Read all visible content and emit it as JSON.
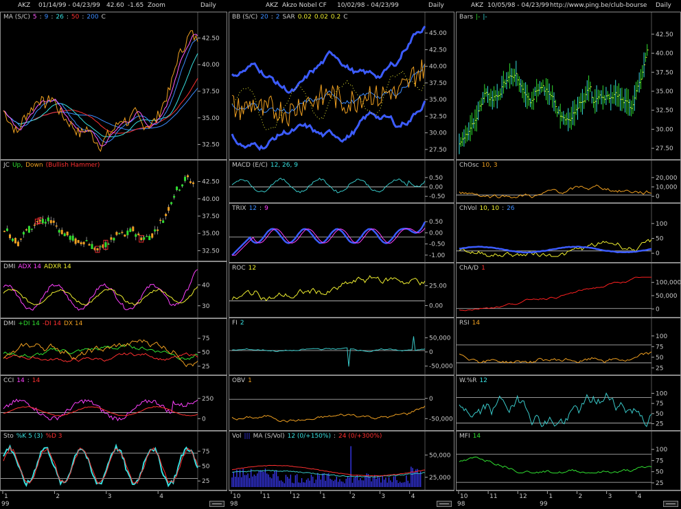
{
  "columns": [
    {
      "id": "c1",
      "header": {
        "ticker": "AKZ",
        "range": "01/14/99 - 04/23/99",
        "price": "42.60",
        "change": "-1.65",
        "mode": "Zoom",
        "period": "Daily"
      },
      "x_labels": [
        "1",
        "2",
        "3",
        "4"
      ],
      "year_label": "99",
      "panels": [
        {
          "id": "c1p1",
          "kind": "price-ma",
          "label": [
            [
              "MA (S/C)",
              "#c8c8c8"
            ],
            [
              "5",
              "#ff5cff"
            ],
            [
              ":",
              "#c8c8c8"
            ],
            [
              "9",
              "#3c8cff"
            ],
            [
              ":",
              "#c8c8c8"
            ],
            [
              "26",
              "#38e0e0"
            ],
            [
              ":",
              "#c8c8c8"
            ],
            [
              "50",
              "#ff3030"
            ],
            [
              ":",
              "#c8c8c8"
            ],
            [
              "200",
              "#3c8cff"
            ],
            [
              "C",
              "#c8c8c8"
            ]
          ],
          "ticks": [
            "42.50",
            "40.00",
            "37.50",
            "35.00",
            "32.50"
          ]
        },
        {
          "id": "c1p2",
          "kind": "candles",
          "label": [
            [
              "JC",
              "#c8c8c8"
            ],
            [
              "Up,",
              "#30e030"
            ],
            [
              "Down",
              "#f0a020"
            ],
            [
              "(Bullish Hammer)",
              "#ff3030"
            ]
          ],
          "ticks": [
            "42.50",
            "40.00",
            "37.50",
            "35.00",
            "32.50"
          ]
        },
        {
          "id": "c1p3",
          "kind": "adx",
          "label": [
            [
              "DMI",
              "#c8c8c8"
            ],
            [
              "ADX 14",
              "#ff40ff"
            ],
            [
              "ADXR 14",
              "#f0f030"
            ]
          ],
          "ticks": [
            "40",
            "30"
          ]
        },
        {
          "id": "c1p4",
          "kind": "dmi",
          "label": [
            [
              "DMI",
              "#c8c8c8"
            ],
            [
              "+DI 14",
              "#30e030"
            ],
            [
              "-DI 14",
              "#ff3030"
            ],
            [
              "DX 14",
              "#f0a020"
            ]
          ],
          "ticks": [
            "75",
            "50",
            "25"
          ]
        },
        {
          "id": "c1p5",
          "kind": "cci",
          "label": [
            [
              "CCI",
              "#c8c8c8"
            ],
            [
              "14",
              "#ff40ff"
            ],
            [
              ":",
              "#c8c8c8"
            ],
            [
              "14",
              "#ff3030"
            ]
          ],
          "ticks": [
            "250",
            "0"
          ]
        },
        {
          "id": "c1p6",
          "kind": "sto",
          "label": [
            [
              "Sto",
              "#c8c8c8"
            ],
            [
              "%K 5 (3)",
              "#38e0e0"
            ],
            [
              "%D 3",
              "#ff3030"
            ]
          ],
          "ticks": [
            "75",
            "50",
            "25"
          ]
        }
      ]
    },
    {
      "id": "c2",
      "header": {
        "ticker": "AKZ",
        "name": "Akzo Nobel CF",
        "range": "10/02/98 - 04/23/99",
        "period": "Daily"
      },
      "x_labels": [
        "10",
        "11",
        "12",
        "1",
        "2",
        "3",
        "4"
      ],
      "year_label": "98",
      "panels": [
        {
          "id": "c2p1",
          "kind": "bb",
          "label": [
            [
              "BB (S/C)",
              "#c8c8c8"
            ],
            [
              "20",
              "#3c8cff"
            ],
            [
              ":",
              "#c8c8c8"
            ],
            [
              "2",
              "#3c8cff"
            ],
            [
              "SAR",
              "#c8c8c8"
            ],
            [
              "0.02",
              "#f0f030"
            ],
            [
              "0.02",
              "#f0f030"
            ],
            [
              "0.2",
              "#f0f030"
            ],
            [
              "C",
              "#c8c8c8"
            ]
          ],
          "ticks": [
            "45.00",
            "42.50",
            "40.00",
            "37.50",
            "35.00",
            "32.50",
            "30.00",
            "27.50"
          ]
        },
        {
          "id": "c2p2",
          "kind": "macd",
          "label": [
            [
              "MACD (E/C)",
              "#c8c8c8"
            ],
            [
              "12, 26, 9",
              "#38e0e0"
            ]
          ],
          "ticks": [
            "0.50",
            "0.00",
            "-0.50"
          ]
        },
        {
          "id": "c2p3",
          "kind": "trix",
          "label": [
            [
              "TRIX",
              "#c8c8c8"
            ],
            [
              "12",
              "#3c8cff"
            ],
            [
              ":",
              "#c8c8c8"
            ],
            [
              "9",
              "#ff40ff"
            ]
          ],
          "ticks": [
            "0.50",
            "0.00",
            "-0.50",
            "-1.00"
          ]
        },
        {
          "id": "c2p4",
          "kind": "roc",
          "label": [
            [
              "ROC",
              "#c8c8c8"
            ],
            [
              "12",
              "#f0f030"
            ]
          ],
          "ticks": [
            "25.00",
            "0.00"
          ]
        },
        {
          "id": "c2p5",
          "kind": "fi",
          "label": [
            [
              "FI",
              "#c8c8c8"
            ],
            [
              "2",
              "#38e0e0"
            ]
          ],
          "ticks": [
            "50,000",
            "0",
            "-50,000"
          ]
        },
        {
          "id": "c2p6",
          "kind": "obv",
          "label": [
            [
              "OBV",
              "#c8c8c8"
            ],
            [
              "1",
              "#f0a020"
            ]
          ],
          "ticks": [
            "0",
            "-50,000"
          ]
        },
        {
          "id": "c2p7",
          "kind": "vol",
          "label": [
            [
              "Vol",
              "#c8c8c8"
            ],
            [
              "|||",
              "#3c3cff"
            ],
            [
              "MA (S/Vol)",
              "#c8c8c8"
            ],
            [
              "12 (0/+150%)",
              "#38e0e0"
            ],
            [
              ":",
              "#c8c8c8"
            ],
            [
              "24 (0/+300%)",
              "#ff3030"
            ]
          ],
          "ticks": [
            "50,000",
            "25,000"
          ]
        }
      ]
    },
    {
      "id": "c3",
      "header": {
        "ticker": "AKZ",
        "range": "10/05/98 - 04/23/99",
        "url": "http://www.ping.be/club-bourse",
        "period": "Daily"
      },
      "x_labels": [
        "10",
        "11",
        "12",
        "1",
        "2",
        "3",
        "4"
      ],
      "year_label": "98",
      "year_label2": "99",
      "panels": [
        {
          "id": "c3p1",
          "kind": "bars",
          "label": [
            [
              "Bars",
              "#c8c8c8"
            ],
            [
              "|-",
              "#30e030"
            ],
            [
              "|-",
              "#38e0e0"
            ]
          ],
          "ticks": [
            "42.50",
            "40.00",
            "37.50",
            "35.00",
            "32.50",
            "30.00",
            "27.50"
          ]
        },
        {
          "id": "c3p2",
          "kind": "chosc",
          "label": [
            [
              "ChOsc",
              "#c8c8c8"
            ],
            [
              "10, 3",
              "#f0a020"
            ]
          ],
          "ticks": [
            "20,000",
            "10,000",
            "0"
          ]
        },
        {
          "id": "c3p3",
          "kind": "chvol",
          "label": [
            [
              "ChVol",
              "#c8c8c8"
            ],
            [
              "10, 10",
              "#f0f030"
            ],
            [
              ":",
              "#c8c8c8"
            ],
            [
              "26",
              "#3c8cff"
            ]
          ],
          "ticks": [
            "100",
            "50",
            "0"
          ]
        },
        {
          "id": "c3p4",
          "kind": "chad",
          "label": [
            [
              "ChA/D",
              "#c8c8c8"
            ],
            [
              "1",
              "#ff3030"
            ]
          ],
          "ticks": [
            "100,000",
            "50,000",
            "0"
          ]
        },
        {
          "id": "c3p5",
          "kind": "rsi",
          "label": [
            [
              "RSI",
              "#c8c8c8"
            ],
            [
              "14",
              "#f0a020"
            ]
          ],
          "ticks": [
            "100",
            "75",
            "50",
            "25"
          ]
        },
        {
          "id": "c3p6",
          "kind": "wr",
          "label": [
            [
              "W.%R",
              "#c8c8c8"
            ],
            [
              "12",
              "#38e0e0"
            ]
          ],
          "ticks": [
            "100",
            "75",
            "50",
            "25"
          ]
        },
        {
          "id": "c3p7",
          "kind": "mfi",
          "label": [
            [
              "MFI",
              "#c8c8c8"
            ],
            [
              "14",
              "#30e030"
            ]
          ],
          "ticks": [
            "100",
            "75",
            "50",
            "25"
          ]
        }
      ]
    }
  ],
  "chart_data": [
    {
      "type": "line",
      "title": "MA (S/C) 5:9:26:50:200 C",
      "x_range": [
        "01/14/99",
        "04/23/99"
      ],
      "ylim": [
        30.5,
        45
      ],
      "series": [
        {
          "name": "C",
          "values": [
            35.5,
            34.2,
            33.0,
            34.8,
            35.6,
            36.8,
            36.2,
            37.0,
            35.5,
            34.5,
            33.8,
            32.9,
            33.6,
            32.5,
            31.6,
            32.8,
            33.5,
            34.6,
            34.2,
            35.3,
            34.0,
            33.9,
            34.5,
            36.2,
            37.8,
            41.0,
            42.5,
            44.0,
            43.0
          ]
        }
      ]
    },
    {
      "type": "bar",
      "title": "JC Up, Down (Bullish Hammer)",
      "ylim": [
        30.5,
        45
      ]
    },
    {
      "type": "line",
      "title": "BB (S/C) 20:2 SAR 0.02 0.02 0.2 C",
      "x_range": [
        "10/02/98",
        "04/23/99"
      ],
      "ylim": [
        25.5,
        45.5
      ]
    },
    {
      "type": "bar",
      "title": "Bars",
      "x_range": [
        "10/05/98",
        "04/23/99"
      ],
      "ylim": [
        25.5,
        45.5
      ]
    }
  ],
  "colors": {
    "background": "#000000",
    "frame": "#8a8a8a",
    "refline": "#c8c8c8"
  }
}
